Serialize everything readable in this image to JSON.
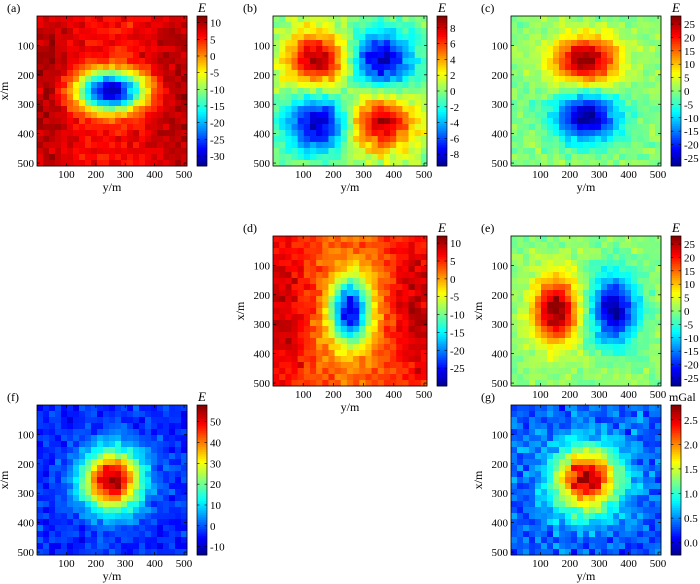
{
  "figure": {
    "background": "#ffffff"
  },
  "colormap": {
    "name": "jet",
    "stops": [
      "#00008f",
      "#0000ff",
      "#00ffff",
      "#ffff00",
      "#ff0000",
      "#800000"
    ]
  },
  "chart_data": [
    {
      "panel": "(a)",
      "type": "heatmap",
      "grid": [
        25,
        25
      ],
      "x_range": [
        0,
        510
      ],
      "y_range": [
        0,
        510
      ],
      "xlabel": "y/m",
      "ylabel": "x/m",
      "xticks": [
        "100",
        "200",
        "300",
        "400",
        "500"
      ],
      "yticks": [
        "100",
        "200",
        "300",
        "400",
        "500"
      ],
      "colorbar": {
        "title": "E",
        "range": [
          -33,
          12
        ],
        "ticks": [
          "10",
          "5",
          "0",
          "-5",
          "-10",
          "-15",
          "-20",
          "-25",
          "-30"
        ],
        "tick_values": [
          10,
          5,
          0,
          -5,
          -10,
          -15,
          -20,
          -25,
          -30
        ]
      },
      "field": {
        "base": 6,
        "noise": 2.2,
        "seed": 11,
        "components": [
          {
            "x": 250,
            "y": 255,
            "sx": 80,
            "sy": 48,
            "a": -38
          },
          {
            "x": 35,
            "y": 255,
            "sx": 70,
            "sy": 240,
            "a": 4
          },
          {
            "x": 470,
            "y": 255,
            "sx": 70,
            "sy": 240,
            "a": 4
          }
        ]
      }
    },
    {
      "panel": "(b)",
      "type": "heatmap",
      "grid": [
        25,
        25
      ],
      "x_range": [
        0,
        510
      ],
      "y_range": [
        0,
        510
      ],
      "xlabel": "y/m",
      "ylabel": "",
      "xticks": [
        "100",
        "200",
        "300",
        "400",
        "500"
      ],
      "yticks": [
        "100",
        "200",
        "300",
        "400",
        "500"
      ],
      "colorbar": {
        "title": "E",
        "range": [
          -9.5,
          9.5
        ],
        "ticks": [
          "8",
          "6",
          "4",
          "2",
          "0",
          "-2",
          "-4",
          "-6",
          "-8"
        ],
        "tick_values": [
          8,
          6,
          4,
          2,
          0,
          -2,
          -4,
          -6,
          -8
        ]
      },
      "field": {
        "base": 0,
        "noise": 1.1,
        "seed": 22,
        "components": [
          {
            "x": 150,
            "y": 148,
            "sx": 78,
            "sy": 68,
            "a": 8.5
          },
          {
            "x": 355,
            "y": 148,
            "sx": 78,
            "sy": 68,
            "a": -8.5
          },
          {
            "x": 150,
            "y": 365,
            "sx": 78,
            "sy": 68,
            "a": -8.5
          },
          {
            "x": 355,
            "y": 365,
            "sx": 78,
            "sy": 68,
            "a": 8.5
          }
        ]
      }
    },
    {
      "panel": "(c)",
      "type": "heatmap",
      "grid": [
        25,
        25
      ],
      "x_range": [
        0,
        510
      ],
      "y_range": [
        0,
        510
      ],
      "xlabel": "y/m",
      "ylabel": "",
      "xticks": [
        "100",
        "200",
        "300",
        "400",
        "500"
      ],
      "yticks": [
        "100",
        "200",
        "300",
        "400",
        "500"
      ],
      "colorbar": {
        "title": "E",
        "range": [
          -28,
          28
        ],
        "ticks": [
          "25",
          "20",
          "15",
          "10",
          "5",
          "0",
          "-5",
          "-10",
          "-15",
          "-20",
          "-25"
        ],
        "tick_values": [
          25,
          20,
          15,
          10,
          5,
          0,
          -5,
          -10,
          -15,
          -20,
          -25
        ]
      },
      "field": {
        "base": 0,
        "noise": 2.8,
        "seed": 33,
        "components": [
          {
            "x": 255,
            "y": 150,
            "sx": 78,
            "sy": 58,
            "a": 27
          },
          {
            "x": 255,
            "y": 345,
            "sx": 78,
            "sy": 58,
            "a": -27
          }
        ]
      }
    },
    {
      "panel": "(d)",
      "type": "heatmap",
      "grid": [
        25,
        25
      ],
      "x_range": [
        0,
        510
      ],
      "y_range": [
        0,
        510
      ],
      "xlabel": "y/m",
      "ylabel": "x/m",
      "xticks": [
        "100",
        "200",
        "300",
        "400",
        "500"
      ],
      "yticks": [
        "100",
        "200",
        "300",
        "400",
        "500"
      ],
      "colorbar": {
        "title": "E",
        "range": [
          -30,
          12
        ],
        "ticks": [
          "10",
          "5",
          "0",
          "-5",
          "-10",
          "-15",
          "-20",
          "-25"
        ],
        "tick_values": [
          10,
          5,
          0,
          -5,
          -10,
          -15,
          -20,
          -25
        ]
      },
      "field": {
        "base": 3,
        "noise": 2.3,
        "seed": 44,
        "components": [
          {
            "x": 255,
            "y": 255,
            "sx": 46,
            "sy": 82,
            "a": -30
          },
          {
            "x": 30,
            "y": 255,
            "sx": 60,
            "sy": 220,
            "a": 6
          },
          {
            "x": 480,
            "y": 255,
            "sx": 60,
            "sy": 220,
            "a": 6
          }
        ]
      }
    },
    {
      "panel": "(e)",
      "type": "heatmap",
      "grid": [
        25,
        25
      ],
      "x_range": [
        0,
        510
      ],
      "y_range": [
        0,
        510
      ],
      "xlabel": "y/m",
      "ylabel": "x/m",
      "xticks": [
        "100",
        "200",
        "300",
        "400",
        "500"
      ],
      "yticks": [
        "100",
        "200",
        "300",
        "400",
        "500"
      ],
      "colorbar": {
        "title": "E",
        "range": [
          -28,
          28
        ],
        "ticks": [
          "25",
          "20",
          "15",
          "10",
          "5",
          "0",
          "-5",
          "-10",
          "-15",
          "-20",
          "-25"
        ],
        "tick_values": [
          25,
          20,
          15,
          10,
          5,
          0,
          -5,
          -10,
          -15,
          -20,
          -25
        ]
      },
      "field": {
        "base": 0,
        "noise": 2.8,
        "seed": 55,
        "components": [
          {
            "x": 150,
            "y": 250,
            "sx": 55,
            "sy": 80,
            "a": 27
          },
          {
            "x": 350,
            "y": 250,
            "sx": 55,
            "sy": 80,
            "a": -27
          }
        ]
      }
    },
    {
      "panel": "(f)",
      "type": "heatmap",
      "grid": [
        25,
        25
      ],
      "x_range": [
        0,
        510
      ],
      "y_range": [
        0,
        510
      ],
      "xlabel": "y/m",
      "ylabel": "x/m",
      "xticks": [
        "100",
        "200",
        "300",
        "400",
        "500"
      ],
      "yticks": [
        "100",
        "200",
        "300",
        "400",
        "500"
      ],
      "colorbar": {
        "title": "E",
        "range": [
          -14,
          58
        ],
        "ticks": [
          "50",
          "40",
          "30",
          "20",
          "10",
          "0",
          "-10"
        ],
        "tick_values": [
          50,
          40,
          30,
          20,
          10,
          0,
          -10
        ]
      },
      "field": {
        "base": -3,
        "noise": 4,
        "seed": 66,
        "components": [
          {
            "x": 255,
            "y": 255,
            "sx": 70,
            "sy": 70,
            "a": 60
          }
        ]
      }
    },
    {
      "panel": "(g)",
      "type": "heatmap",
      "grid": [
        25,
        25
      ],
      "x_range": [
        0,
        510
      ],
      "y_range": [
        0,
        510
      ],
      "xlabel": "y/m",
      "ylabel": "x/m",
      "xticks": [
        "100",
        "200",
        "300",
        "400",
        "500"
      ],
      "yticks": [
        "100",
        "200",
        "300",
        "400",
        "500"
      ],
      "colorbar": {
        "title": "mGal",
        "range": [
          -0.25,
          2.8
        ],
        "ticks": [
          "2.5",
          "2.0",
          "1.5",
          "1.0",
          "0.5",
          "0.0"
        ],
        "tick_values": [
          2.5,
          2.0,
          1.5,
          1.0,
          0.5,
          0.0
        ]
      },
      "field": {
        "base": 0.35,
        "noise": 0.26,
        "seed": 77,
        "components": [
          {
            "x": 255,
            "y": 255,
            "sx": 78,
            "sy": 78,
            "a": 2.3
          }
        ]
      }
    }
  ]
}
